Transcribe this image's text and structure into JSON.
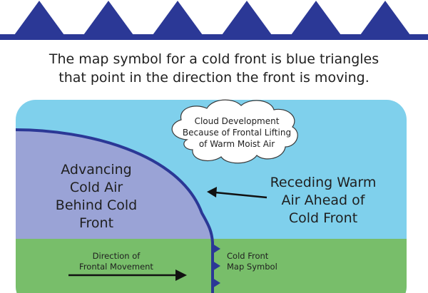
{
  "caption": {
    "line1": "The map symbol for a cold front is blue triangles",
    "line2": "that point in the direction the front is moving."
  },
  "cloud": {
    "line1": "Cloud Development",
    "line2": "Because of Frontal Lifting",
    "line3": "of Warm Moist Air"
  },
  "cold_air": {
    "line1": "Advancing",
    "line2": "Cold Air",
    "line3": "Behind Cold",
    "line4": "Front"
  },
  "warm_air": {
    "line1": "Receding Warm",
    "line2": "Air Ahead of",
    "line3": "Cold Front"
  },
  "movement": {
    "line1": "Direction of",
    "line2": "Frontal Movement"
  },
  "symbol": {
    "line1": "Cold Front",
    "line2": "Map Symbol"
  },
  "colors": {
    "front_blue": "#2b3896",
    "sky": "#7fd0ec",
    "cold_air": "#9aa3d6",
    "ground": "#78be6a",
    "arrow": "#111111"
  }
}
